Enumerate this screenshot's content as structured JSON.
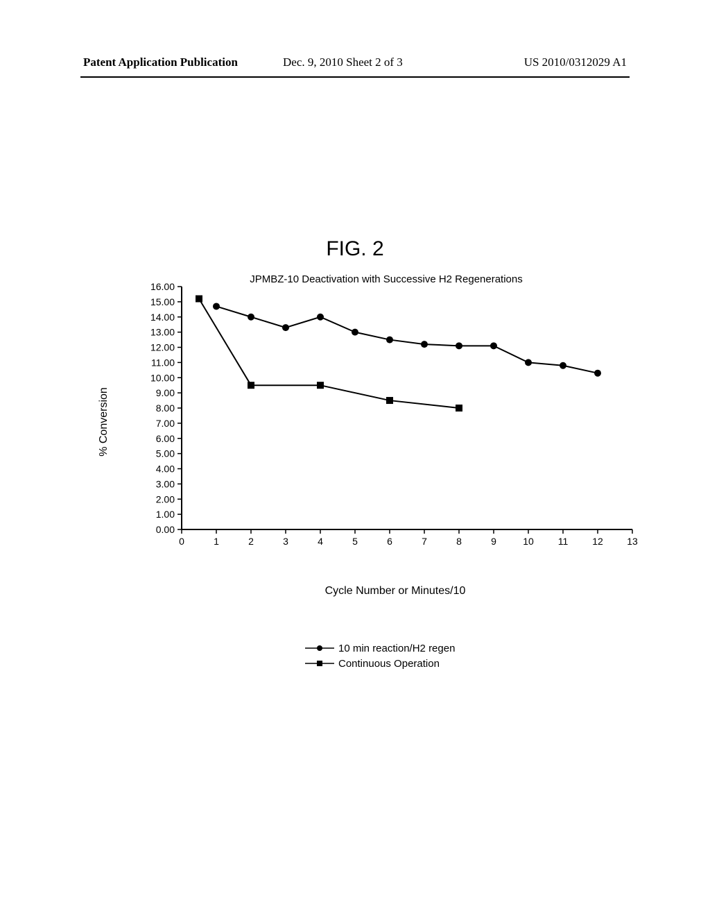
{
  "header": {
    "left": "Patent Application Publication",
    "center": "Dec. 9, 2010  Sheet 2 of 3",
    "right": "US 2010/0312029 A1"
  },
  "figure": {
    "label": "FIG. 2",
    "chart_title": "JPMBZ-10 Deactivation with Successive H2 Regenerations",
    "y_label": "% Conversion",
    "x_label": "Cycle Number or Minutes/10",
    "type": "line",
    "xlim": [
      0,
      13
    ],
    "ylim": [
      0,
      16
    ],
    "yticks": [
      0.0,
      1.0,
      2.0,
      3.0,
      4.0,
      5.0,
      6.0,
      7.0,
      8.0,
      9.0,
      10.0,
      11.0,
      12.0,
      13.0,
      14.0,
      15.0,
      16.0
    ],
    "xticks": [
      0,
      1,
      2,
      3,
      4,
      5,
      6,
      7,
      8,
      9,
      10,
      11,
      12,
      13
    ],
    "axis_color": "#000000",
    "tick_len": 6,
    "line_width": 2,
    "marker_size": 5,
    "label_fontsize": 16,
    "tick_fontsize": 14,
    "title_fontsize": 15,
    "series": [
      {
        "name": "10 min reaction/H2 regen",
        "marker": "circle",
        "color": "#000000",
        "x": [
          1,
          2,
          3,
          4,
          5,
          6,
          7,
          8,
          9,
          10,
          11,
          12
        ],
        "y": [
          14.7,
          14.0,
          13.3,
          14.0,
          13.0,
          12.5,
          12.2,
          12.1,
          12.1,
          11.0,
          10.8,
          10.3
        ]
      },
      {
        "name": "Continuous Operation",
        "marker": "square",
        "color": "#000000",
        "x": [
          0.5,
          2,
          4,
          6,
          8
        ],
        "y": [
          15.2,
          9.5,
          9.5,
          8.5,
          8.0
        ]
      }
    ],
    "legend": [
      {
        "marker": "circle",
        "label": "10 min reaction/H2 regen"
      },
      {
        "marker": "square",
        "label": "Continuous Operation"
      }
    ]
  }
}
